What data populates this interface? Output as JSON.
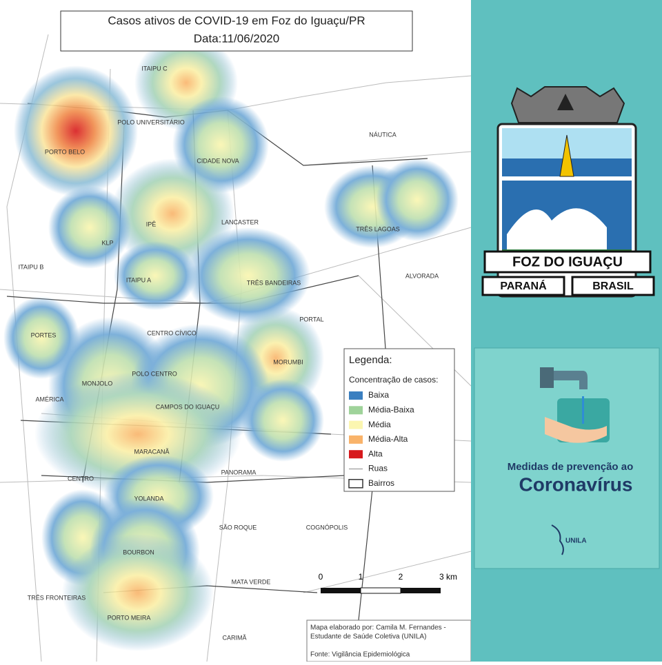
{
  "title": {
    "line1": "Casos ativos de COVID-19 em Foz do Iguaçu/PR",
    "line2": "Data:11/06/2020"
  },
  "neighborhoods": [
    {
      "label": "ITAIPU C"
    },
    {
      "label": "POLO UNIVERSITÁRIO"
    },
    {
      "label": "PORTO BELO"
    },
    {
      "label": "CIDADE NOVA"
    },
    {
      "label": "NÁUTICA"
    },
    {
      "label": "LANCASTER"
    },
    {
      "label": "IPÊ"
    },
    {
      "label": "TRÊS LAGOAS"
    },
    {
      "label": "KLP"
    },
    {
      "label": "ITAIPU B"
    },
    {
      "label": "ALVORADA"
    },
    {
      "label": "ITAIPU A"
    },
    {
      "label": "TRÊS BANDEIRAS"
    },
    {
      "label": "PORTAL"
    },
    {
      "label": "CENTRO CÍVICO"
    },
    {
      "label": "PORTES"
    },
    {
      "label": "MORUMBI"
    },
    {
      "label": "POLO CENTRO"
    },
    {
      "label": "MONJOLO"
    },
    {
      "label": "AMÉRICA"
    },
    {
      "label": "CAMPOS DO IGUAÇU"
    },
    {
      "label": "MARACANÃ"
    },
    {
      "label": "PANORAMA"
    },
    {
      "label": "CENTRO"
    },
    {
      "label": "YOLANDA"
    },
    {
      "label": "SÃO ROQUE"
    },
    {
      "label": "COGNÓPOLIS"
    },
    {
      "label": "BOURBON"
    },
    {
      "label": "MATA VERDE"
    },
    {
      "label": "TRÊS FRONTEIRAS"
    },
    {
      "label": "PORTO MEIRA"
    },
    {
      "label": "CARIMÃ"
    }
  ],
  "legend": {
    "title": "Legenda:",
    "subtitle": "Concentração de casos:",
    "items": [
      {
        "label": "Baixa",
        "color": "#3a7fc0",
        "kind": "fill"
      },
      {
        "label": "Média-Baixa",
        "color": "#9fd39a",
        "kind": "fill"
      },
      {
        "label": "Média",
        "color": "#fbf6b0",
        "kind": "fill"
      },
      {
        "label": "Média-Alta",
        "color": "#f9b36a",
        "kind": "fill"
      },
      {
        "label": "Alta",
        "color": "#d7191c",
        "kind": "fill"
      },
      {
        "label": "Ruas",
        "color": "#888888",
        "kind": "line"
      },
      {
        "label": "Bairros",
        "color": "#333333",
        "kind": "outline"
      }
    ]
  },
  "scale": {
    "labels": [
      "0",
      "1",
      "2",
      "3 km"
    ]
  },
  "credits": {
    "line1": "Mapa elaborado por: Camila M. Fernandes -",
    "line2": "Estudante de Saúde Coletiva (UNILA)",
    "line3": "Fonte: Vigilância Epidemiológica"
  },
  "emblem": {
    "city": "FOZ DO IGUAÇU",
    "state": "PARANÁ",
    "country": "BRASIL"
  },
  "campaign": {
    "line1": "Medidas de prevenção ao",
    "line2": "Coronavírus",
    "org": "UNILA"
  }
}
